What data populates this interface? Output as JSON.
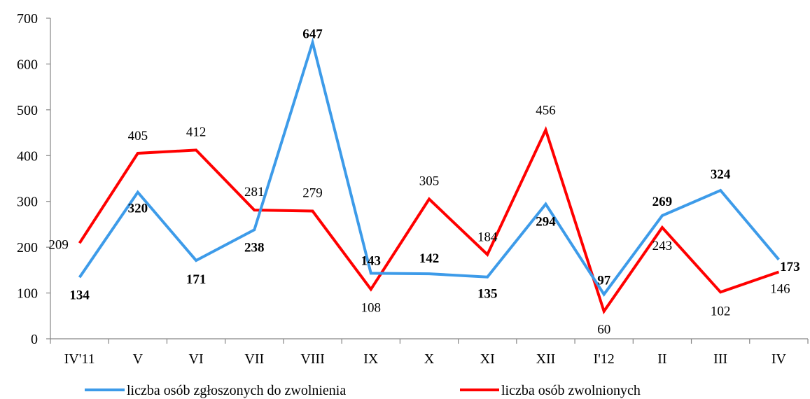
{
  "chart_data": {
    "type": "line",
    "categories": [
      "IV'11",
      "V",
      "VI",
      "VII",
      "VIII",
      "IX",
      "X",
      "XI",
      "XII",
      "I'12",
      "II",
      "III",
      "IV"
    ],
    "ylim": [
      0,
      700
    ],
    "yticks": [
      0,
      100,
      200,
      300,
      400,
      500,
      600,
      700
    ],
    "grid": false,
    "legend_position": "bottom",
    "series": [
      {
        "name": "liczba osób zgłoszonych do zwolnienia",
        "color": "#3D9BE9",
        "label_weight": "bold",
        "values": [
          134,
          320,
          171,
          238,
          647,
          143,
          142,
          135,
          294,
          97,
          269,
          324,
          173
        ]
      },
      {
        "name": "liczba osób zwolnionych",
        "color": "#FF0000",
        "label_weight": "normal",
        "values": [
          209,
          405,
          412,
          281,
          279,
          108,
          305,
          184,
          456,
          60,
          243,
          102,
          146
        ]
      }
    ]
  }
}
